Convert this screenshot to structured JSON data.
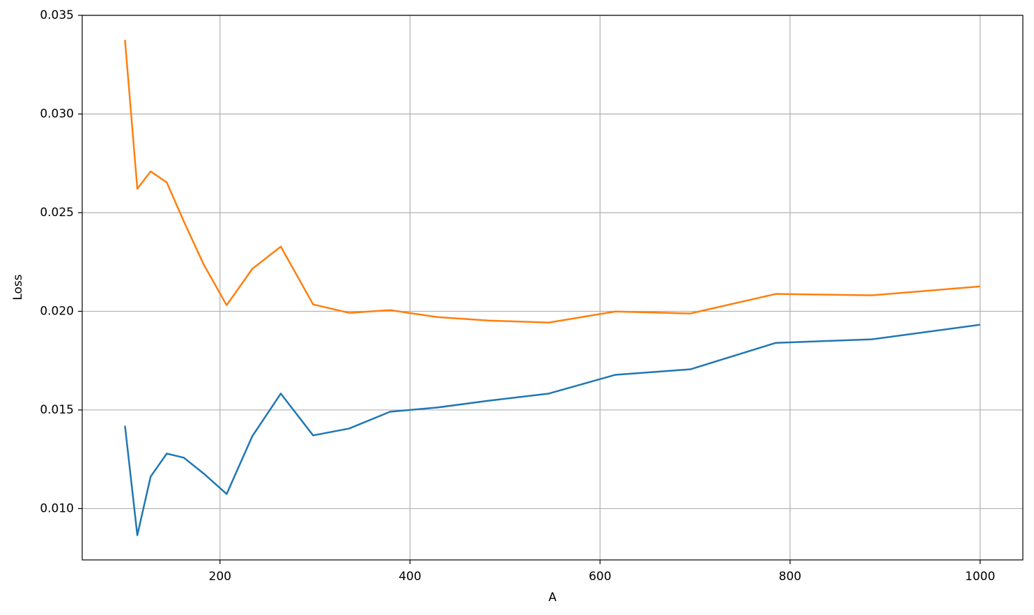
{
  "chart_data": {
    "type": "line",
    "xlabel": "A",
    "ylabel": "Loss",
    "x": [
      100,
      113,
      127,
      144,
      162,
      183,
      207,
      234,
      264,
      298,
      336,
      379,
      428,
      483,
      546,
      616,
      695,
      785,
      886,
      1000
    ],
    "series": [
      {
        "color": "#1f77b4",
        "values": [
          0.0142,
          0.00865,
          0.01162,
          0.01279,
          0.01258,
          0.01177,
          0.01074,
          0.01367,
          0.01583,
          0.01371,
          0.01406,
          0.01491,
          0.01512,
          0.01547,
          0.01583,
          0.01678,
          0.01706,
          0.0184,
          0.01858,
          0.01932
        ]
      },
      {
        "color": "#ff7f0e",
        "values": [
          0.03376,
          0.02621,
          0.02709,
          0.02653,
          0.02455,
          0.02236,
          0.02031,
          0.02215,
          0.02328,
          0.02035,
          0.01992,
          0.02006,
          0.01971,
          0.01953,
          0.01943,
          0.01999,
          0.01989,
          0.02088,
          0.02081,
          0.02126
        ]
      }
    ],
    "xlim": [
      55,
      1045
    ],
    "xticks": [
      200,
      400,
      600,
      800,
      1000
    ],
    "ylim": [
      0.0074,
      0.035
    ],
    "yticks": [
      {
        "value": 0.01,
        "label": "0.010"
      },
      {
        "value": 0.015,
        "label": "0.015"
      },
      {
        "value": 0.02,
        "label": "0.020"
      },
      {
        "value": 0.025,
        "label": "0.025"
      },
      {
        "value": 0.03,
        "label": "0.030"
      },
      {
        "value": 0.035,
        "label": "0.035"
      }
    ],
    "grid": true
  }
}
